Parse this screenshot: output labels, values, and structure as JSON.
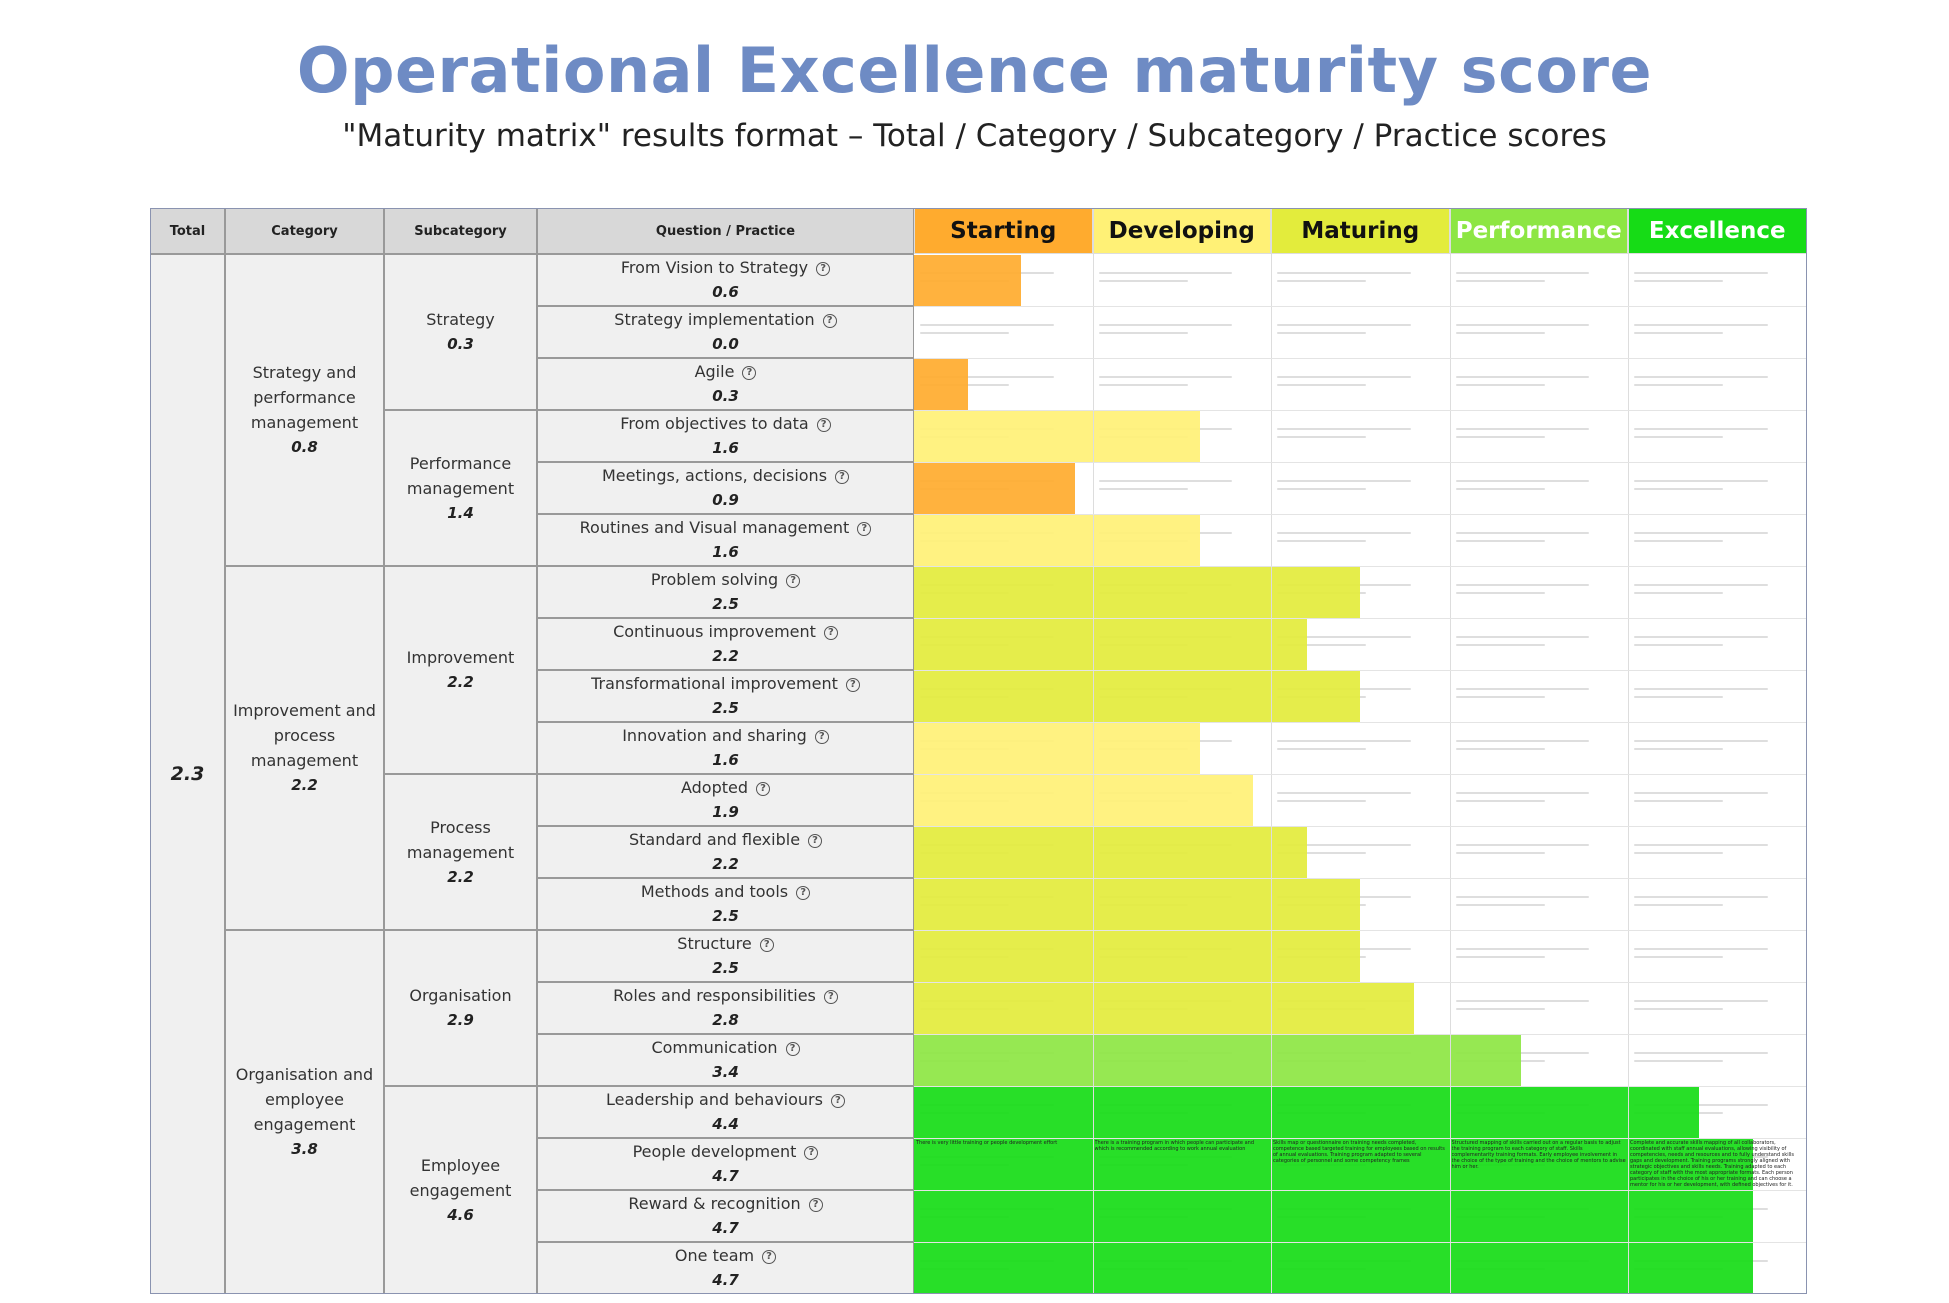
{
  "title": "Operational Excellence maturity score",
  "subtitle": "\"Maturity matrix\" results format – Total / Category / Subcategory / Practice scores",
  "chart_data": {
    "type": "bar",
    "orientation": "horizontal",
    "xlim": [
      0,
      5
    ],
    "headers": {
      "total": "Total",
      "category": "Category",
      "subcategory": "Subcategory",
      "practice": "Question / Practice"
    },
    "help_icon": "question-circle-icon",
    "levels": [
      {
        "label": "Starting",
        "color": "#ffab2e",
        "text_color": "#111111"
      },
      {
        "label": "Developing",
        "color": "#fff176",
        "text_color": "#111111"
      },
      {
        "label": "Maturing",
        "color": "#e3ec3c",
        "text_color": "#111111"
      },
      {
        "label": "Performance",
        "color": "#8de643",
        "text_color": "#ffffff"
      },
      {
        "label": "Excellence",
        "color": "#16dc16",
        "text_color": "#ffffff"
      }
    ],
    "bar_colors": {
      "starting": "#ffab2e",
      "developing": "#fff176",
      "maturing": "#e3ec3c",
      "performance": "#8de643",
      "excellence": "#16dc16"
    },
    "total": {
      "label": "",
      "score": "2.3"
    },
    "categories": [
      {
        "label": "Strategy and performance management",
        "score": "0.8",
        "rows": 6
      },
      {
        "label": "Improvement and process management",
        "score": "2.2",
        "rows": 7
      },
      {
        "label": "Organisation and employee engagement",
        "score": "3.8",
        "rows": 7
      }
    ],
    "subcategories": [
      {
        "label": "Strategy",
        "score": "0.3",
        "rows": 3
      },
      {
        "label": "Performance management",
        "score": "1.4",
        "rows": 3
      },
      {
        "label": "Improvement",
        "score": "2.2",
        "rows": 4
      },
      {
        "label": "Process management",
        "score": "2.2",
        "rows": 3
      },
      {
        "label": "Organisation",
        "score": "2.9",
        "rows": 3
      },
      {
        "label": "Employee engagement",
        "score": "4.6",
        "rows": 4
      }
    ],
    "practices": [
      {
        "label": "From Vision to Strategy",
        "value": 0.6,
        "score": "0.6"
      },
      {
        "label": "Strategy implementation",
        "value": 0.0,
        "score": "0.0"
      },
      {
        "label": "Agile",
        "value": 0.3,
        "score": "0.3"
      },
      {
        "label": "From objectives to data",
        "value": 1.6,
        "score": "1.6"
      },
      {
        "label": "Meetings, actions, decisions",
        "value": 0.9,
        "score": "0.9"
      },
      {
        "label": "Routines and Visual management",
        "value": 1.6,
        "score": "1.6"
      },
      {
        "label": "Problem solving",
        "value": 2.5,
        "score": "2.5"
      },
      {
        "label": "Continuous improvement",
        "value": 2.2,
        "score": "2.2"
      },
      {
        "label": "Transformational improvement",
        "value": 2.5,
        "score": "2.5"
      },
      {
        "label": "Innovation and sharing",
        "value": 1.6,
        "score": "1.6"
      },
      {
        "label": "Adopted",
        "value": 1.9,
        "score": "1.9"
      },
      {
        "label": "Standard and flexible",
        "value": 2.2,
        "score": "2.2"
      },
      {
        "label": "Methods and tools",
        "value": 2.5,
        "score": "2.5"
      },
      {
        "label": "Structure",
        "value": 2.5,
        "score": "2.5"
      },
      {
        "label": "Roles and responsibilities",
        "value": 2.8,
        "score": "2.8"
      },
      {
        "label": "Communication",
        "value": 3.4,
        "score": "3.4"
      },
      {
        "label": "Leadership and behaviours",
        "value": 4.4,
        "score": "4.4"
      },
      {
        "label": "People development",
        "value": 4.7,
        "score": "4.7"
      },
      {
        "label": "Reward & recognition",
        "value": 4.7,
        "score": "4.7"
      },
      {
        "label": "One team",
        "value": 4.7,
        "score": "4.7"
      }
    ],
    "highlighted_row": 17,
    "highlighted_descriptions": [
      "There is very little training or people development effort",
      "There is a training program in which people can participate and which is recommended according to work annual evaluation",
      "Skills map or questionnaire on training needs completed, competence based targeted training for employees based on results of annual evaluations. Training program adapted to several categories of personnel and some competency frames",
      "Structured mapping of skills carried out on a regular basis to adjust the training program to each category of staff. Skills complementarity training formats. Early employee involvement in the choice of the type of training and the choice of mentors to advise him or her.",
      "Complete and accurate skills mapping of all collaborators, coordinated with staff annual evaluations, allowing visibility of competencies, needs and resources and to fully understand skills gaps and development. Training programs strongly aligned with strategic objectives and skills needs. Training adapted to each category of staff with the most appropriate formats. Each person participates in the choice of his or her training and can choose a mentor for his or her development, with defined objectives for it."
    ]
  }
}
